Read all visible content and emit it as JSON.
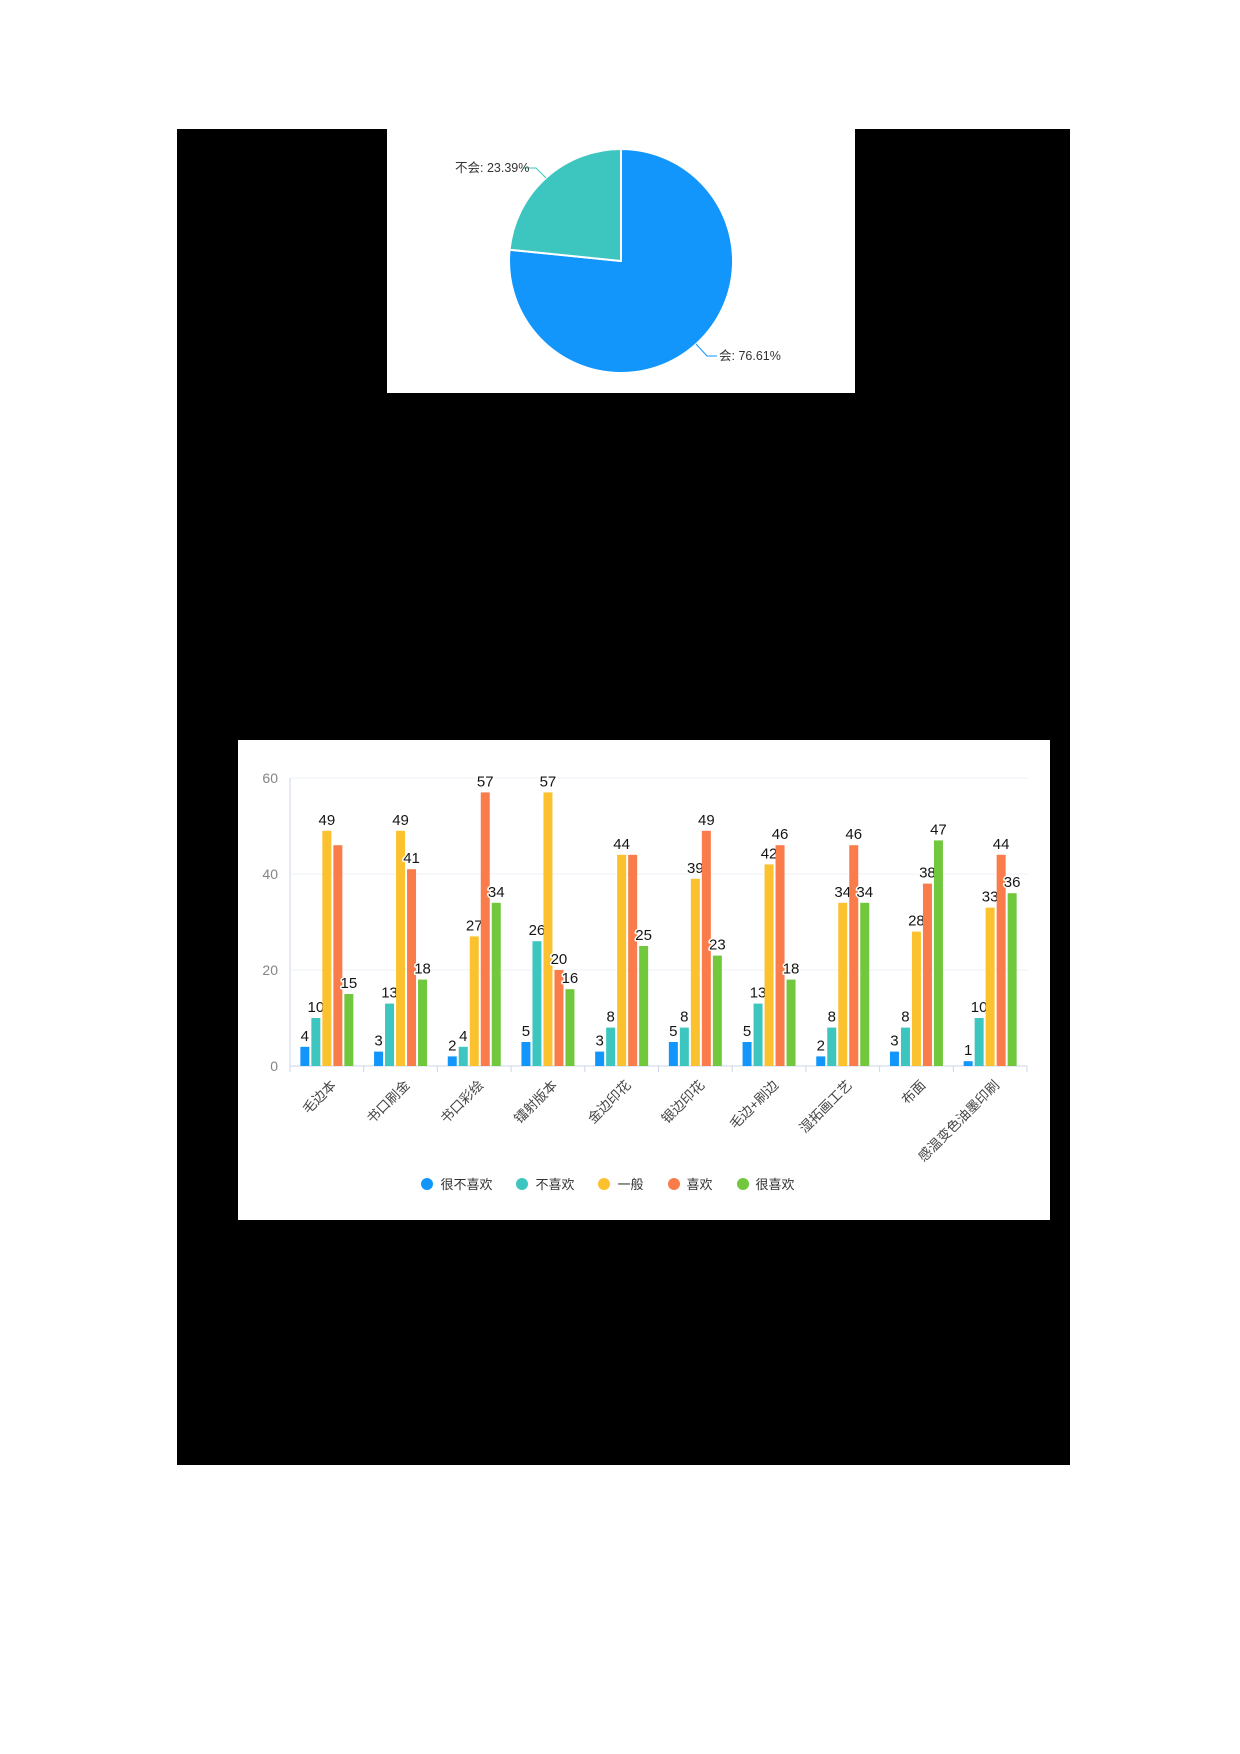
{
  "colors": {
    "page_background": "#ffffff",
    "canvas_background": "#000000",
    "panel_background": "#ffffff",
    "axis_line": "#ccd5ea",
    "grid_line": "#eef1f8",
    "tick_label": "#848484",
    "value_label": "#151515",
    "category_label": "#454545",
    "legend_text": "#333333"
  },
  "chart_data": [
    {
      "type": "pie",
      "slices": [
        {
          "name": "会",
          "value": 76.61,
          "label": "会: 76.61%",
          "color": "#1296fb"
        },
        {
          "name": "不会",
          "value": 23.39,
          "label": "不会: 23.39%",
          "color": "#3dc6bf"
        }
      ],
      "start_angle_deg": 90,
      "direction": "clockwise",
      "legend_position": "none"
    },
    {
      "type": "bar",
      "categories": [
        "毛边本",
        "书口刷金",
        "书口彩绘",
        "镭射版本",
        "金边印花",
        "银边印花",
        "毛边+刷边",
        "湿拓画工艺",
        "布面",
        "感温变色油墨印刷"
      ],
      "series": [
        {
          "name": "很不喜欢",
          "color": "#1296fb",
          "values": [
            4,
            3,
            2,
            5,
            3,
            5,
            5,
            2,
            3,
            1
          ]
        },
        {
          "name": "不喜欢",
          "color": "#3dc6bf",
          "values": [
            10,
            13,
            4,
            26,
            8,
            8,
            13,
            8,
            8,
            10
          ]
        },
        {
          "name": "一般",
          "color": "#fbc12f",
          "values": [
            49,
            49,
            27,
            57,
            44,
            39,
            42,
            34,
            28,
            33
          ]
        },
        {
          "name": "喜欢",
          "color": "#f97c4a",
          "values": [
            46,
            41,
            57,
            20,
            44,
            49,
            46,
            46,
            38,
            44
          ]
        },
        {
          "name": "很喜欢",
          "color": "#72c83d",
          "values": [
            15,
            18,
            34,
            16,
            25,
            23,
            18,
            34,
            47,
            36
          ]
        }
      ],
      "hidden_value_labels": [
        {
          "series": 3,
          "category": 0
        },
        {
          "series": 3,
          "category": 4
        }
      ],
      "y_ticks": [
        0,
        20,
        40,
        60
      ],
      "ylim": [
        0,
        60
      ],
      "grid": true,
      "xlabel": "",
      "ylabel": "",
      "legend_position": "bottom",
      "legend": [
        "很不喜欢",
        "不喜欢",
        "一般",
        "喜欢",
        "很喜欢"
      ]
    }
  ]
}
